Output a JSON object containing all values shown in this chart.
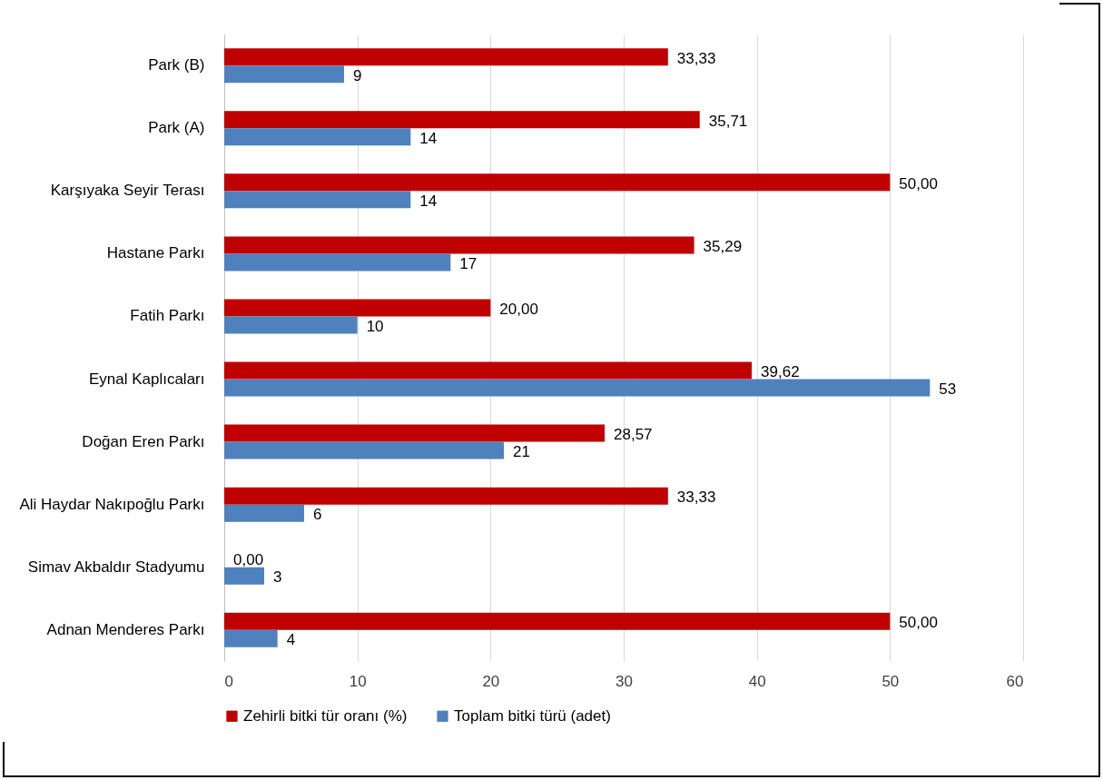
{
  "chart_data": {
    "type": "bar",
    "orientation": "horizontal",
    "categories": [
      "Park (B)",
      "Park (A)",
      "Karşıyaka Seyir Terası",
      "Hastane Parkı",
      "Fatih Parkı",
      "Eynal Kaplıcaları",
      "Doğan Eren Parkı",
      "Ali Haydar Nakıpoğlu Parkı",
      "Simav Akbaldır Stadyumu",
      "Adnan Menderes Parkı"
    ],
    "series": [
      {
        "name": "Zehirli bitki tür oranı (%)",
        "color": "#c00000",
        "values": [
          33.33,
          35.71,
          50,
          35.29,
          20,
          39.62,
          28.57,
          33.33,
          0,
          50
        ],
        "value_labels": [
          "33,33",
          "35,71",
          "50,00",
          "35,29",
          "20,00",
          "39,62",
          "28,57",
          "33,33",
          "0,00",
          "50,00"
        ]
      },
      {
        "name": "Toplam bitki türü (adet)",
        "color": "#4f81bd",
        "values": [
          9,
          14,
          14,
          17,
          10,
          53,
          21,
          6,
          3,
          4
        ],
        "value_labels": [
          "9",
          "14",
          "14",
          "17",
          "10",
          "53",
          "21",
          "6",
          "3",
          "4"
        ]
      }
    ],
    "xlim": [
      0,
      60
    ],
    "xticks": [
      0,
      10,
      20,
      30,
      40,
      50,
      60
    ],
    "grid": "x",
    "legend": "bottom"
  }
}
